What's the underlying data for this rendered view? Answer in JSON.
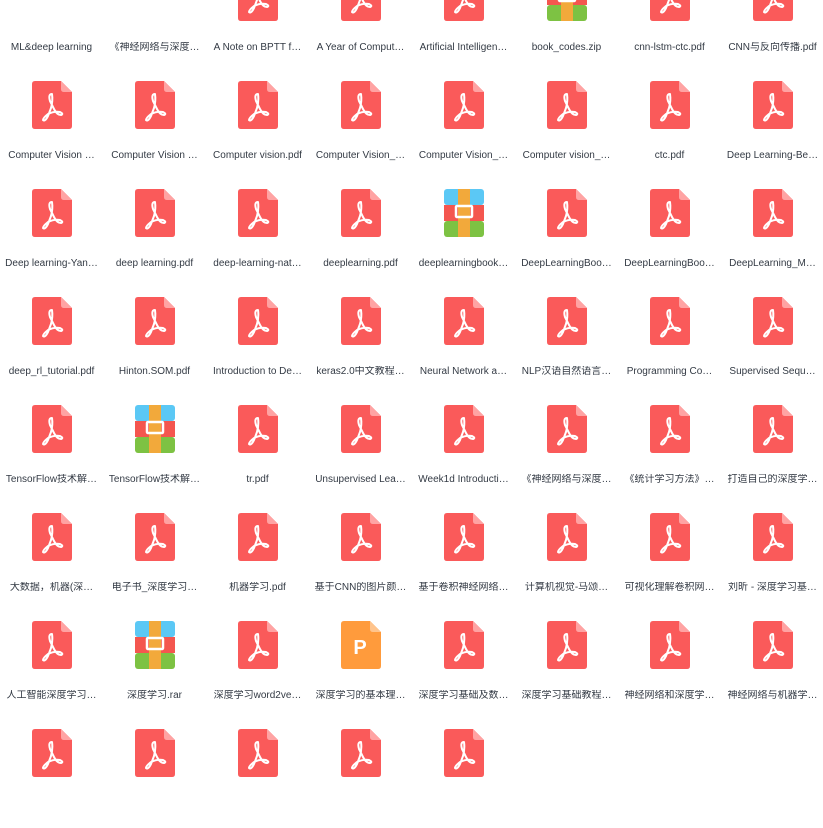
{
  "colors": {
    "pdf": "#fa5a5a",
    "pdf_fold": "#ffa3a3",
    "folder": "#ffd659",
    "ppt": "#ff9b3c",
    "zip_top": "#5bc8f5",
    "zip_mid": "#f4564f",
    "zip_bottom": "#7dc243",
    "zip_strap": "#f2a93b"
  },
  "files": [
    {
      "name": "ML&deep learning",
      "type": "folder-icon"
    },
    {
      "name": "《神经网络与深度…",
      "type": "folder-icon"
    },
    {
      "name": "A Note on BPTT f…",
      "type": "pdf-icon"
    },
    {
      "name": "A Year of Comput…",
      "type": "pdf-icon"
    },
    {
      "name": "Artificial Intelligen…",
      "type": "pdf-icon"
    },
    {
      "name": "book_codes.zip",
      "type": "zip-icon"
    },
    {
      "name": "cnn-lstm-ctc.pdf",
      "type": "pdf-icon"
    },
    {
      "name": "CNN与反向传播.pdf",
      "type": "pdf-icon"
    },
    {
      "name": "Computer Vision …",
      "type": "pdf-icon"
    },
    {
      "name": "Computer Vision …",
      "type": "pdf-icon"
    },
    {
      "name": "Computer vision.pdf",
      "type": "pdf-icon"
    },
    {
      "name": "Computer Vision_…",
      "type": "pdf-icon"
    },
    {
      "name": "Computer Vision_…",
      "type": "pdf-icon"
    },
    {
      "name": "Computer vision_…",
      "type": "pdf-icon"
    },
    {
      "name": "ctc.pdf",
      "type": "pdf-icon"
    },
    {
      "name": "Deep Learning-Be…",
      "type": "pdf-icon"
    },
    {
      "name": "Deep learning-Yan…",
      "type": "pdf-icon"
    },
    {
      "name": "deep learning.pdf",
      "type": "pdf-icon"
    },
    {
      "name": "deep-learning-nat…",
      "type": "pdf-icon"
    },
    {
      "name": "deeplearning.pdf",
      "type": "pdf-icon"
    },
    {
      "name": "deeplearningbook…",
      "type": "zip-icon"
    },
    {
      "name": "DeepLearningBoo…",
      "type": "pdf-icon"
    },
    {
      "name": "DeepLearningBoo…",
      "type": "pdf-icon"
    },
    {
      "name": "DeepLearning_M…",
      "type": "pdf-icon"
    },
    {
      "name": "deep_rl_tutorial.pdf",
      "type": "pdf-icon"
    },
    {
      "name": "Hinton.SOM.pdf",
      "type": "pdf-icon"
    },
    {
      "name": "Introduction to De…",
      "type": "pdf-icon"
    },
    {
      "name": "keras2.0中文教程…",
      "type": "pdf-icon"
    },
    {
      "name": "Neural Network a…",
      "type": "pdf-icon"
    },
    {
      "name": "NLP汉语自然语言…",
      "type": "pdf-icon"
    },
    {
      "name": "Programming Co…",
      "type": "pdf-icon"
    },
    {
      "name": "Supervised Sequ…",
      "type": "pdf-icon"
    },
    {
      "name": "TensorFlow技术解…",
      "type": "pdf-icon"
    },
    {
      "name": "TensorFlow技术解…",
      "type": "zip-icon"
    },
    {
      "name": "tr.pdf",
      "type": "pdf-icon"
    },
    {
      "name": "Unsupervised Lea…",
      "type": "pdf-icon"
    },
    {
      "name": "Week1d Introducti…",
      "type": "pdf-icon"
    },
    {
      "name": "《神经网络与深度…",
      "type": "pdf-icon"
    },
    {
      "name": "《统计学习方法》…",
      "type": "pdf-icon"
    },
    {
      "name": "打造自己的深度学…",
      "type": "pdf-icon"
    },
    {
      "name": "大数据，机器(深…",
      "type": "pdf-icon"
    },
    {
      "name": "电子书_深度学习…",
      "type": "pdf-icon"
    },
    {
      "name": "机器学习.pdf",
      "type": "pdf-icon"
    },
    {
      "name": "基于CNN的图片颜…",
      "type": "pdf-icon"
    },
    {
      "name": "基于卷积神经网络…",
      "type": "pdf-icon"
    },
    {
      "name": "计算机视觉-马颂…",
      "type": "pdf-icon"
    },
    {
      "name": "可视化理解卷积网…",
      "type": "pdf-icon"
    },
    {
      "name": "刘昕 - 深度学习基…",
      "type": "pdf-icon"
    },
    {
      "name": "人工智能深度学习…",
      "type": "pdf-icon"
    },
    {
      "name": "深度学习.rar",
      "type": "zip-icon"
    },
    {
      "name": "深度学习word2ve…",
      "type": "pdf-icon"
    },
    {
      "name": "深度学习的基本理…",
      "type": "ppt-icon",
      "letter": "P"
    },
    {
      "name": "深度学习基础及数…",
      "type": "pdf-icon"
    },
    {
      "name": "深度学习基础教程…",
      "type": "pdf-icon"
    },
    {
      "name": "神经网络和深度学…",
      "type": "pdf-icon"
    },
    {
      "name": "神经网络与机器学…",
      "type": "pdf-icon"
    },
    {
      "name": "",
      "type": "pdf-icon"
    },
    {
      "name": "",
      "type": "pdf-icon"
    },
    {
      "name": "",
      "type": "pdf-icon"
    },
    {
      "name": "",
      "type": "pdf-icon"
    },
    {
      "name": "",
      "type": "pdf-icon"
    }
  ]
}
